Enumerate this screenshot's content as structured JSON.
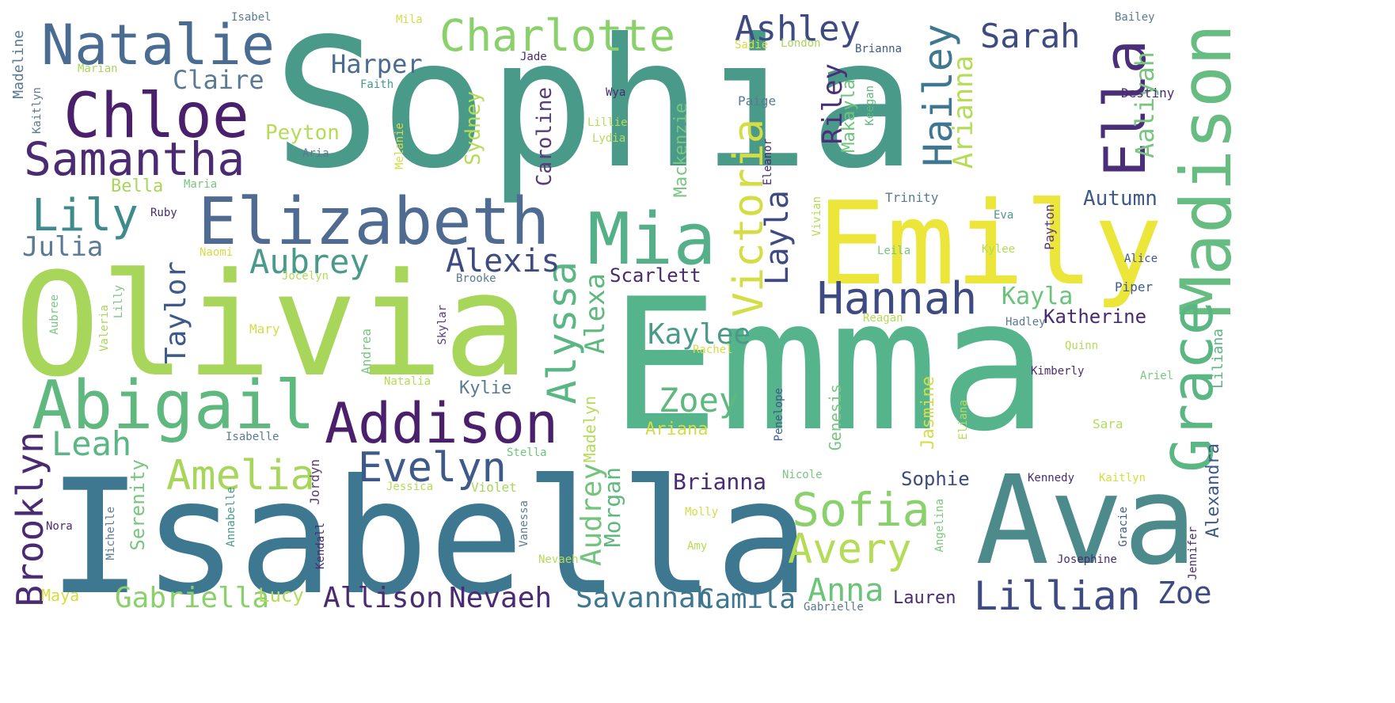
{
  "words": [
    "Sophia",
    "Emma",
    "Isabella",
    "Olivia",
    "Ava",
    "Emily",
    "Madison",
    "Abigail",
    "Mia",
    "Chloe",
    "Elizabeth",
    "Natalie",
    "Ella",
    "Addison",
    "Samantha",
    "Grace",
    "Charlotte",
    "Hannah",
    "Victoria",
    "Lily",
    "Sofia",
    "Avery",
    "Evelyn",
    "Amelia",
    "Alyssa",
    "Lillian",
    "Hailey",
    "Ashley",
    "Sarah",
    "Brooklyn",
    "Alexis",
    "Aubrey",
    "Leah",
    "Layla",
    "Zoey",
    "Gabriella",
    "Allison",
    "Nevaeh",
    "Savannah",
    "Anna",
    "Claire",
    "Harper",
    "Taylor",
    "Kaylee",
    "Riley",
    "Julia",
    "Alexa",
    "Audrey",
    "Zoe",
    "Camila",
    "Kayla",
    "Brianna",
    "Arianna",
    "Aaliyah",
    "Autumn",
    "Katherine",
    "Scarlett",
    "Sophie",
    "Peyton",
    "Caroline",
    "Sydney",
    "Makayla",
    "Mackenzie",
    "Morgan",
    "Alexandra",
    "Serenity",
    "Madelyn",
    "Kylie",
    "Lauren",
    "Jasmine",
    "Genesis",
    "Liliana",
    "Lucy",
    "Ariana",
    "Bella",
    "Madeline",
    "Maya",
    "Annabelle",
    "Jordyn",
    "Jessica",
    "Violet",
    "Stella",
    "Isabelle",
    "Valeria",
    "Lilly",
    "Aubree",
    "Mary",
    "Andrea",
    "Natalia",
    "Skylar",
    "Jocelyn",
    "Brooke",
    "Paige",
    "Destiny",
    "Trinity",
    "Eva",
    "Kylee",
    "Payton",
    "Alice",
    "Piper",
    "Kimberly",
    "Gabrielle",
    "Nicole",
    "Penelope",
    "Angelina",
    "Gracie",
    "Jennifer",
    "Kennedy",
    "Kaitlyn",
    "Sara",
    "Faith",
    "Sadie",
    "London",
    "Brianna",
    "Bailey",
    "Jade",
    "Marian",
    "Kaitlyn",
    "Isabel",
    "Mila",
    "Wya",
    "Lillie",
    "Lydia",
    "Melanie",
    "Eleanor",
    "Vivian",
    "Maria",
    "Ruby",
    "Naomi",
    "Aria",
    "Rachel",
    "Molly",
    "Amy",
    "Nora",
    "Michelle",
    "Vanessa",
    "Kendall",
    "Keegan",
    "Reagan",
    "Hadley",
    "Quinn",
    "Ariel",
    "Eliana",
    "Nevaeh",
    "Leila",
    "Josephine"
  ]
}
